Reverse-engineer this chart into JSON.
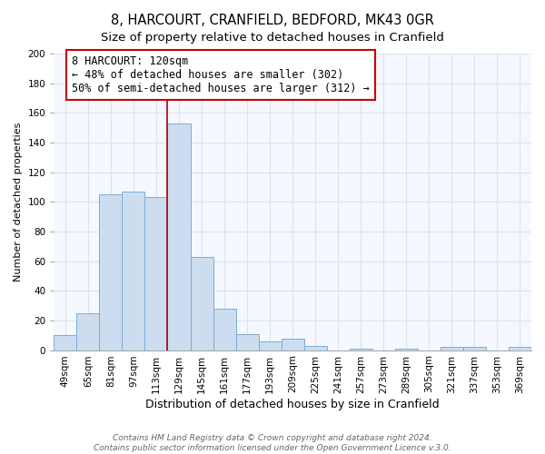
{
  "title": "8, HARCOURT, CRANFIELD, BEDFORD, MK43 0GR",
  "subtitle": "Size of property relative to detached houses in Cranfield",
  "xlabel": "Distribution of detached houses by size in Cranfield",
  "ylabel": "Number of detached properties",
  "bar_color": "#ccddf0",
  "bar_edge_color": "#7aadd4",
  "categories": [
    "49sqm",
    "65sqm",
    "81sqm",
    "97sqm",
    "113sqm",
    "129sqm",
    "145sqm",
    "161sqm",
    "177sqm",
    "193sqm",
    "209sqm",
    "225sqm",
    "241sqm",
    "257sqm",
    "273sqm",
    "289sqm",
    "305sqm",
    "321sqm",
    "337sqm",
    "353sqm",
    "369sqm"
  ],
  "values": [
    10,
    25,
    105,
    107,
    103,
    153,
    63,
    28,
    11,
    6,
    8,
    3,
    0,
    1,
    0,
    1,
    0,
    2,
    2,
    0,
    2
  ],
  "ylim": [
    0,
    200
  ],
  "yticks": [
    0,
    20,
    40,
    60,
    80,
    100,
    120,
    140,
    160,
    180,
    200
  ],
  "property_line_x": 4.5,
  "property_line_label": "8 HARCOURT: 120sqm",
  "annotation_line1": "← 48% of detached houses are smaller (302)",
  "annotation_line2": "50% of semi-detached houses are larger (312) →",
  "annotation_box_color": "#ffffff",
  "annotation_box_edge": "#cc0000",
  "property_line_color": "#aa0000",
  "footer1": "Contains HM Land Registry data © Crown copyright and database right 2024.",
  "footer2": "Contains public sector information licensed under the Open Government Licence v.3.0.",
  "background_color": "#ffffff",
  "plot_background": "#f5f8ff",
  "grid_color": "#d8e4f0",
  "title_fontsize": 10.5,
  "subtitle_fontsize": 9.5,
  "xlabel_fontsize": 9,
  "ylabel_fontsize": 8,
  "tick_fontsize": 7.5,
  "footer_fontsize": 6.5,
  "annotation_fontsize": 8.5
}
